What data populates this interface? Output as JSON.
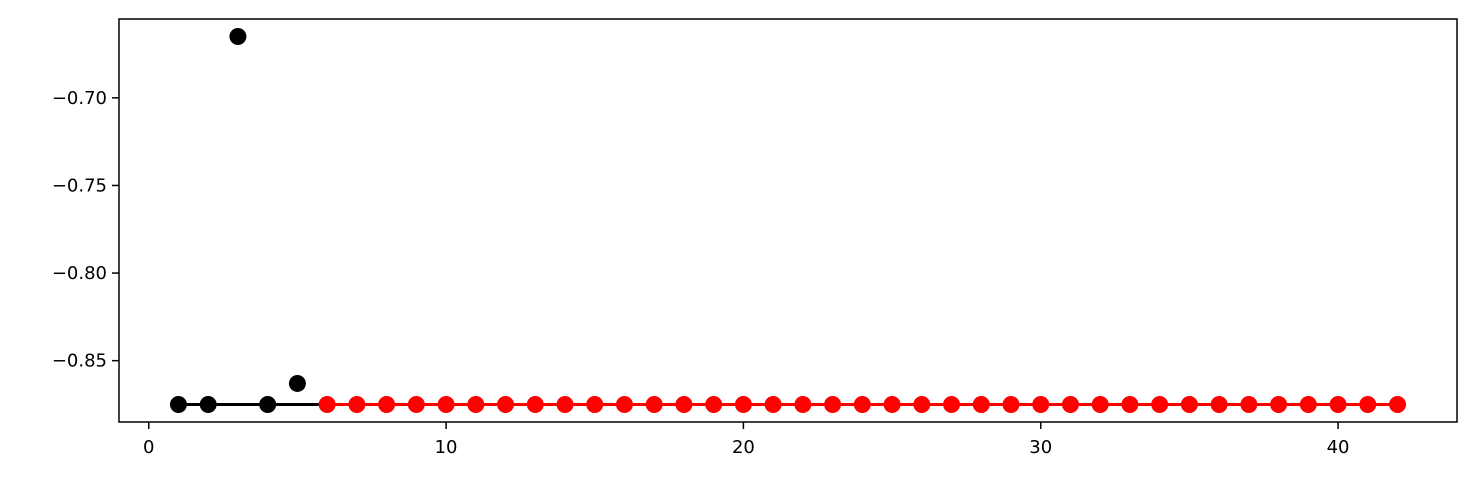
{
  "chart_data": {
    "type": "scatter",
    "title": "",
    "xlabel": "",
    "ylabel": "",
    "xlim": [
      -1,
      44
    ],
    "ylim": [
      -0.885,
      -0.655
    ],
    "x_ticks": [
      0,
      10,
      20,
      30,
      40
    ],
    "y_ticks": [
      -0.7,
      -0.75,
      -0.8,
      -0.85
    ],
    "x_tick_labels": [
      "0",
      "10",
      "20",
      "30",
      "40"
    ],
    "y_tick_labels": [
      "−0.70",
      "−0.75",
      "−0.80",
      "−0.85"
    ],
    "grid": false,
    "series": [
      {
        "color": "#000000",
        "points": [
          {
            "x": 1,
            "y": -0.875
          },
          {
            "x": 2,
            "y": -0.875
          },
          {
            "x": 3,
            "y": -0.665
          },
          {
            "x": 4,
            "y": -0.875
          },
          {
            "x": 5,
            "y": -0.863
          }
        ]
      },
      {
        "color": "#ff0000",
        "points": [
          {
            "x": 6,
            "y": -0.875
          },
          {
            "x": 7,
            "y": -0.875
          },
          {
            "x": 8,
            "y": -0.875
          },
          {
            "x": 9,
            "y": -0.875
          },
          {
            "x": 10,
            "y": -0.875
          },
          {
            "x": 11,
            "y": -0.875
          },
          {
            "x": 12,
            "y": -0.875
          },
          {
            "x": 13,
            "y": -0.875
          },
          {
            "x": 14,
            "y": -0.875
          },
          {
            "x": 15,
            "y": -0.875
          },
          {
            "x": 16,
            "y": -0.875
          },
          {
            "x": 17,
            "y": -0.875
          },
          {
            "x": 18,
            "y": -0.875
          },
          {
            "x": 19,
            "y": -0.875
          },
          {
            "x": 20,
            "y": -0.875
          },
          {
            "x": 21,
            "y": -0.875
          },
          {
            "x": 22,
            "y": -0.875
          },
          {
            "x": 23,
            "y": -0.875
          },
          {
            "x": 24,
            "y": -0.875
          },
          {
            "x": 25,
            "y": -0.875
          },
          {
            "x": 26,
            "y": -0.875
          },
          {
            "x": 27,
            "y": -0.875
          },
          {
            "x": 28,
            "y": -0.875
          },
          {
            "x": 29,
            "y": -0.875
          },
          {
            "x": 30,
            "y": -0.875
          },
          {
            "x": 31,
            "y": -0.875
          },
          {
            "x": 32,
            "y": -0.875
          },
          {
            "x": 33,
            "y": -0.875
          },
          {
            "x": 34,
            "y": -0.875
          },
          {
            "x": 35,
            "y": -0.875
          },
          {
            "x": 36,
            "y": -0.875
          },
          {
            "x": 37,
            "y": -0.875
          },
          {
            "x": 38,
            "y": -0.875
          },
          {
            "x": 39,
            "y": -0.875
          },
          {
            "x": 40,
            "y": -0.875
          },
          {
            "x": 41,
            "y": -0.875
          },
          {
            "x": 42,
            "y": -0.875
          }
        ]
      }
    ],
    "lines": [
      {
        "color": "#000000",
        "x": [
          1,
          6
        ],
        "y": [
          -0.875,
          -0.875
        ]
      },
      {
        "color": "#ff0000",
        "x": [
          6,
          42
        ],
        "y": [
          -0.875,
          -0.875
        ]
      }
    ]
  }
}
